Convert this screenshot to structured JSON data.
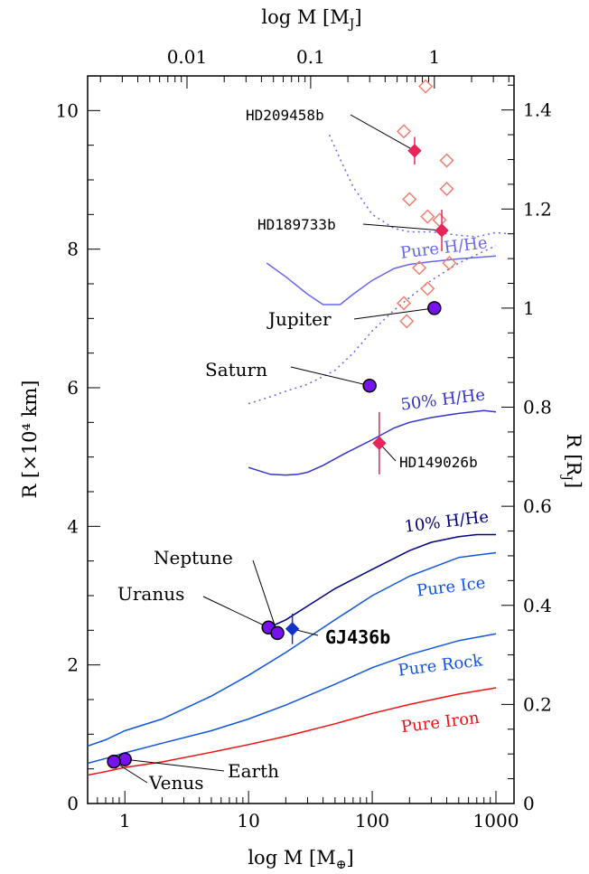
{
  "chart_data": {
    "type": "scatter",
    "x_scale": "log",
    "xlabel": "log M [M",
    "xlabel_sub": "⊕",
    "ylabel": "R [×10⁴ km]",
    "top_xlabel": "log M [M",
    "top_xlabel_sub": "J",
    "right_ylabel": "R [R",
    "right_ylabel_sub": "J",
    "xlim": [
      0.5,
      1400
    ],
    "ylim": [
      0,
      10.5
    ],
    "x_ticks": [
      1,
      10,
      100,
      1000
    ],
    "x_tick_labels": [
      "1",
      "10",
      "100",
      "1000"
    ],
    "y_ticks": [
      0,
      2,
      4,
      6,
      8,
      10
    ],
    "y_tick_labels": [
      "0",
      "2",
      "4",
      "6",
      "8",
      "10"
    ],
    "top_ticks_mj": [
      0.01,
      0.1,
      1
    ],
    "top_tick_labels": [
      "0.01",
      "0.1",
      "1"
    ],
    "right_ticks_rj": [
      0,
      0.2,
      0.4,
      0.6,
      0.8,
      1,
      1.2,
      1.4
    ],
    "right_tick_labels": [
      "0",
      "0.2",
      "0.4",
      "0.6",
      "0.8",
      "1",
      "1.2",
      "1.4"
    ],
    "series": [
      {
        "name": "Pure H/He",
        "style": "solid",
        "color": "#6666ee",
        "x": [
          14,
          20,
          30,
          40,
          55,
          70,
          100,
          150,
          200,
          300,
          500,
          1000
        ],
        "y": [
          7.8,
          7.6,
          7.35,
          7.2,
          7.2,
          7.35,
          7.55,
          7.72,
          7.78,
          7.82,
          7.86,
          7.9
        ]
      },
      {
        "name": "",
        "style": "dotted",
        "color": "#6666ee",
        "x": [
          10,
          15,
          20,
          30,
          50,
          70,
          100,
          150,
          200,
          300,
          500,
          1000
        ],
        "y": [
          5.77,
          5.87,
          5.95,
          6.05,
          6.25,
          6.5,
          6.82,
          7.12,
          7.3,
          7.55,
          7.8,
          8.05
        ]
      },
      {
        "name": "",
        "style": "dotted",
        "color": "#6666ee",
        "x": [
          45,
          55,
          70,
          100,
          150,
          200,
          300,
          500,
          700,
          1000,
          1300
        ],
        "y": [
          9.65,
          9.3,
          8.9,
          8.5,
          8.3,
          8.25,
          8.25,
          8.2,
          8.18,
          8.24,
          8.22
        ]
      },
      {
        "name": "50% H/He",
        "style": "solid",
        "color": "#3333cc",
        "x": [
          10,
          15,
          20,
          25,
          30,
          40,
          60,
          100,
          150,
          200,
          300,
          500,
          800,
          1000
        ],
        "y": [
          4.85,
          4.75,
          4.74,
          4.75,
          4.78,
          4.88,
          5.05,
          5.25,
          5.42,
          5.5,
          5.57,
          5.63,
          5.67,
          5.65
        ]
      },
      {
        "name": "10% H/He",
        "style": "solid",
        "color": "#000080",
        "x": [
          13,
          20,
          30,
          50,
          100,
          200,
          300,
          500,
          700,
          1000
        ],
        "y": [
          2.5,
          2.65,
          2.85,
          3.1,
          3.38,
          3.65,
          3.77,
          3.85,
          3.88,
          3.88
        ]
      },
      {
        "name": "Pure Ice",
        "style": "solid",
        "color": "#1155dd",
        "x": [
          0.5,
          0.7,
          1,
          2,
          5,
          10,
          20,
          50,
          100,
          200,
          500,
          1000
        ],
        "y": [
          0.83,
          0.92,
          1.05,
          1.22,
          1.55,
          1.85,
          2.18,
          2.65,
          3.0,
          3.28,
          3.55,
          3.62
        ]
      },
      {
        "name": "Pure Rock",
        "style": "solid",
        "color": "#1155dd",
        "x": [
          0.5,
          0.7,
          1,
          2,
          5,
          10,
          20,
          50,
          100,
          200,
          500,
          1000
        ],
        "y": [
          0.58,
          0.65,
          0.73,
          0.87,
          1.05,
          1.22,
          1.42,
          1.72,
          1.96,
          2.15,
          2.35,
          2.45
        ]
      },
      {
        "name": "Pure Iron",
        "style": "solid",
        "color": "#ee1111",
        "x": [
          0.5,
          0.7,
          1,
          2,
          5,
          10,
          20,
          50,
          100,
          200,
          500,
          1000
        ],
        "y": [
          0.41,
          0.46,
          0.52,
          0.6,
          0.74,
          0.85,
          0.97,
          1.15,
          1.3,
          1.43,
          1.58,
          1.67
        ]
      }
    ],
    "solar_planets": [
      {
        "name": "Earth",
        "mass": 1.0,
        "radius": 0.637
      },
      {
        "name": "Venus",
        "mass": 0.815,
        "radius": 0.605
      },
      {
        "name": "Uranus",
        "mass": 14.5,
        "radius": 2.54
      },
      {
        "name": "Neptune",
        "mass": 17.1,
        "radius": 2.46
      },
      {
        "name": "Saturn",
        "mass": 95.2,
        "radius": 6.03
      },
      {
        "name": "Jupiter",
        "mass": 317.8,
        "radius": 7.15
      }
    ],
    "exoplanets": [
      {
        "name": "HD209458b",
        "mass": 220,
        "radius": 9.42,
        "yerr": 0.2
      },
      {
        "name": "HD189733b",
        "mass": 365,
        "radius": 8.27,
        "yerr": 0.3
      },
      {
        "name": "HD149026b",
        "mass": 114,
        "radius": 5.2,
        "yerr": 0.45
      },
      {
        "name": "GJ436b",
        "mass": 22.6,
        "radius": 2.52,
        "yerr": 0.22
      }
    ],
    "open_diamonds": [
      {
        "mass": 270,
        "radius": 10.35
      },
      {
        "mass": 180,
        "radius": 9.7
      },
      {
        "mass": 400,
        "radius": 9.28
      },
      {
        "mass": 200,
        "radius": 8.72
      },
      {
        "mass": 400,
        "radius": 8.87
      },
      {
        "mass": 280,
        "radius": 8.47
      },
      {
        "mass": 350,
        "radius": 8.42
      },
      {
        "mass": 240,
        "radius": 7.73
      },
      {
        "mass": 420,
        "radius": 7.8
      },
      {
        "mass": 280,
        "radius": 7.43
      },
      {
        "mass": 180,
        "radius": 7.22
      },
      {
        "mass": 190,
        "radius": 6.96
      }
    ],
    "colors": {
      "planet_fill": "#7711ee",
      "exoplanet": "#e8245a",
      "gj436b": "#1133cc",
      "open_diamond": "#f08070"
    }
  }
}
